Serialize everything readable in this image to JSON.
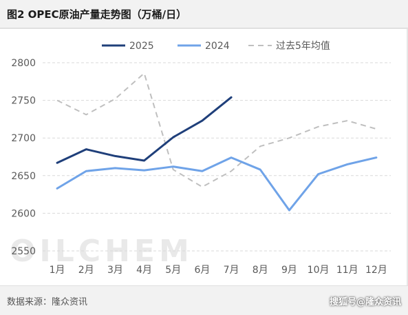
{
  "header": {
    "title": "图2 OPEC原油产量走势图（万桶/日）"
  },
  "footer": {
    "source": "数据来源：隆众资讯",
    "corner_mark": "搜狐号@隆众资讯"
  },
  "watermark": "OILCHEM",
  "chart_data": {
    "type": "line",
    "title": "图2 OPEC原油产量走势图（万桶/日）",
    "xlabel": "",
    "ylabel": "",
    "categories": [
      "1月",
      "2月",
      "3月",
      "4月",
      "5月",
      "6月",
      "7月",
      "8月",
      "9月",
      "10月",
      "11月",
      "12月"
    ],
    "ylim": [
      2550,
      2800
    ],
    "yticks": [
      2550,
      2600,
      2650,
      2700,
      2750,
      2800
    ],
    "grid": true,
    "legend_position": "top",
    "series": [
      {
        "name": "2025",
        "color": "#1f3f7a",
        "style": "solid",
        "values": [
          2667,
          2685,
          2676,
          2670,
          2701,
          2723,
          2754,
          null,
          null,
          null,
          null,
          null
        ]
      },
      {
        "name": "2024",
        "color": "#6fa3e8",
        "style": "solid",
        "values": [
          2633,
          2656,
          2660,
          2657,
          2662,
          2656,
          2674,
          2658,
          2604,
          2652,
          2665,
          2674
        ]
      },
      {
        "name": "过去5年均值",
        "color": "#bfbfbf",
        "style": "dashed",
        "values": [
          2750,
          2731,
          2752,
          2786,
          2658,
          2635,
          2656,
          2689,
          2700,
          2715,
          2723,
          2712
        ]
      }
    ]
  }
}
